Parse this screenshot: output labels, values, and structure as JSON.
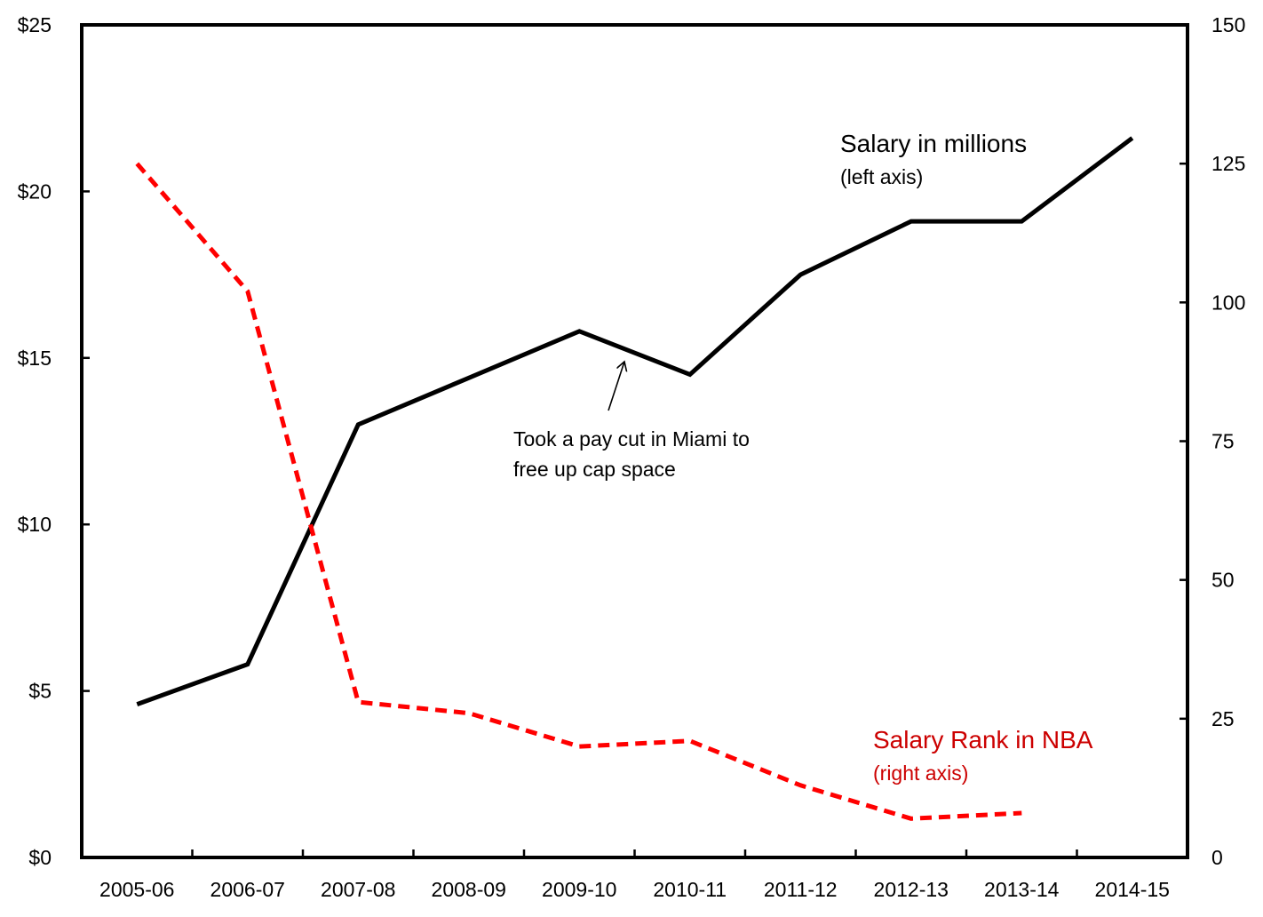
{
  "chart_data": {
    "type": "line",
    "categories": [
      "2005-06",
      "2006-07",
      "2007-08",
      "2008-09",
      "2009-10",
      "2010-11",
      "2011-12",
      "2012-13",
      "2013-14",
      "2014-15"
    ],
    "y_left": {
      "ticks": [
        0,
        5,
        10,
        15,
        20,
        25
      ],
      "tick_labels": [
        "$0",
        "$5",
        "$10",
        "$15",
        "$20",
        "$25"
      ],
      "ylim": [
        0,
        25
      ]
    },
    "y_right": {
      "ticks": [
        0,
        25,
        50,
        75,
        100,
        125,
        150
      ],
      "tick_labels": [
        "0",
        "25",
        "50",
        "75",
        "100",
        "125",
        "150"
      ],
      "ylim": [
        0,
        150
      ]
    },
    "series": [
      {
        "axis": "left",
        "color": "#000000",
        "style": "solid",
        "values": [
          4.6,
          5.8,
          13.0,
          14.4,
          15.8,
          14.5,
          17.5,
          19.1,
          19.1,
          21.6
        ]
      },
      {
        "axis": "right",
        "color": "#ff0000",
        "style": "dashed",
        "values": [
          125,
          102,
          28,
          26,
          20,
          21,
          13,
          7,
          8,
          null
        ]
      }
    ],
    "annotations": {
      "salary": {
        "title": "Salary in millions",
        "sub": "(left axis)",
        "color": "#000000"
      },
      "rank": {
        "title": "Salary Rank in NBA",
        "sub": "(right axis)",
        "color": "#cc0000"
      },
      "note": {
        "line1": "Took a pay cut in Miami to",
        "line2": "free up cap space"
      }
    },
    "grid": false,
    "legend": "none"
  }
}
